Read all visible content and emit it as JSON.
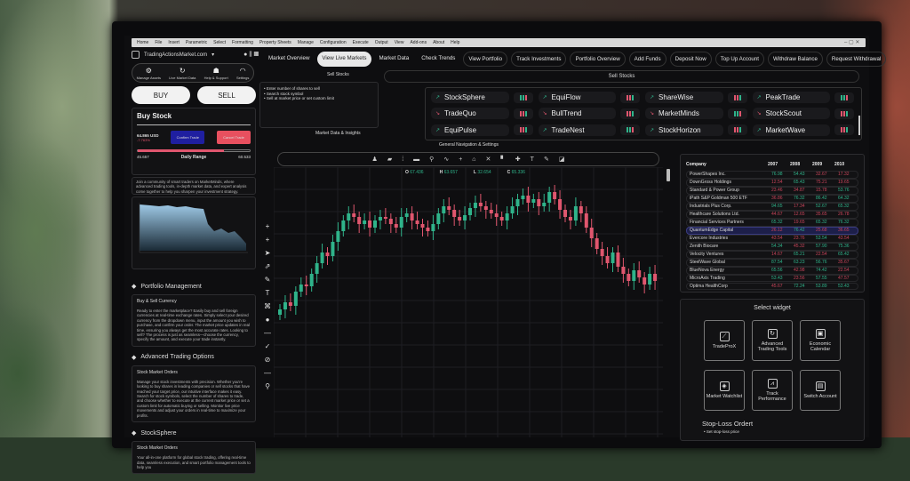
{
  "menubar": [
    "Home",
    "File",
    "Insert",
    "Parametric",
    "Select",
    "Formatting",
    "Property Sheets",
    "Manage",
    "Configuration",
    "Execute",
    "Output",
    "View",
    "Add-ons",
    "About",
    "Help"
  ],
  "brand": "TradingActionsMarket.com",
  "quick_actions": [
    {
      "icon": "gear-icon",
      "label": "Manage Assets"
    },
    {
      "icon": "refresh-icon",
      "label": "Live Market Data"
    },
    {
      "icon": "support-icon",
      "label": "Help & Support"
    },
    {
      "icon": "wifi-icon",
      "label": "Settings"
    }
  ],
  "buy_label": "BUY",
  "sell_label": "SELL",
  "buy_stock": {
    "title": "Buy Stock",
    "price": "64.865 USD",
    "change": "-7.763%",
    "confirm": "Confirm Trade",
    "cancel": "Cancel Trade",
    "range_low": "45.657",
    "range_label": "Daily Range",
    "range_high": "60.533",
    "range_fill": 0.77
  },
  "community_text": "Join a community of smart traders on MarketMinds, where advanced trading tools, in-depth market data, and expert analysis come together to help you sharpen your investment strategy.",
  "sections": [
    {
      "title": "Portfolio Management",
      "subtitle": "Buy & Sell Currency",
      "text": "Ready to enter the marketplace? Easily buy and sell foreign currencies at real-time exchange rates. Simply select your desired currency from the dropdown menu, input the amount you wish to purchase, and confirm your order. The market price updates in real time, ensuring you always get the most accurate rates. Looking to sell? The process is just as seamless—choose the currency, specify the amount, and execute your trade instantly."
    },
    {
      "title": "Advanced Trading Options",
      "subtitle": "Stock Market Orders",
      "text": "Manage your stock investments with precision. Whether you're looking to buy shares in leading companies or sell stocks that have reached your target price, our intuitive interface makes it easy. Search for stock symbols, select the number of shares to trade, and choose whether to execute at the current market price or set a custom limit for automatic buying or selling. Monitor live price movements and adjust your orders in real-time to maximize your profits."
    },
    {
      "title": "StockSphere",
      "subtitle": "Stock Market Orders",
      "text": "Your all-in-one platform for global stock trading, offering real-time data, seamless execution, and smart portfolio management tools to help you"
    }
  ],
  "nav_tabs": [
    "Market Overview",
    "View Live Markets",
    "Market Data",
    "Check Trends",
    "View Portfolio",
    "Track Investments",
    "Portfolio Overview",
    "Add Funds",
    "Deposit Now",
    "Top Up Account",
    "Withdraw Balance",
    "Request Withdrawal"
  ],
  "active_tab": "View Live Markets",
  "sell_panel": {
    "title": "Sell Stocks",
    "bullets": [
      "Enter number of shares to sell",
      "Search stock symbol",
      "Sell at market price or set custom limit"
    ]
  },
  "sell_stocks_header": "Sell Stocks",
  "stocks": [
    {
      "name": "StockSphere",
      "trend": "up"
    },
    {
      "name": "EquiFlow",
      "trend": "up"
    },
    {
      "name": "ShareWise",
      "trend": "up"
    },
    {
      "name": "PeakTrade",
      "trend": "up"
    },
    {
      "name": "TradeQuo",
      "trend": "down"
    },
    {
      "name": "BullTrend",
      "trend": "down"
    },
    {
      "name": "MarketMinds",
      "trend": "down"
    },
    {
      "name": "StockScout",
      "trend": "down"
    },
    {
      "name": "EquiPulse",
      "trend": "up"
    },
    {
      "name": "TradeNest",
      "trend": "up"
    },
    {
      "name": "StockHorizon",
      "trend": "up"
    },
    {
      "name": "MarketWave",
      "trend": "up"
    }
  ],
  "market_insights_label": "Market Data & Insights",
  "general_nav_label": "General Navigation & Settings",
  "ohlc": {
    "o": "67.436",
    "h": "63.657",
    "l": "32.654",
    "c": "65.336"
  },
  "colors": {
    "up": "#2fb38a",
    "down": "#e0566e",
    "accent_blue": "#1f1fa0",
    "cancel": "#e8505f"
  },
  "chart_data": {
    "type": "candlestick",
    "closes": [
      20,
      24,
      22,
      30,
      34,
      33,
      40,
      46,
      52,
      50,
      58,
      64,
      70,
      74,
      72,
      68,
      70,
      66,
      70,
      72,
      71,
      68,
      66,
      72,
      74,
      70,
      68,
      66,
      64,
      68,
      74,
      78,
      76,
      72,
      70,
      73,
      77,
      80,
      78,
      76,
      74,
      72,
      70,
      74,
      78,
      82,
      84,
      80,
      82,
      78,
      80,
      86,
      82,
      76,
      72,
      70,
      78,
      74,
      66,
      60,
      54,
      50,
      46,
      52,
      44,
      40,
      36,
      42,
      38,
      34,
      40,
      36
    ]
  },
  "table": {
    "headers": [
      "Company",
      "2007",
      "2008",
      "2009",
      "2010"
    ],
    "rows": [
      [
        "PowerShapes Inc.",
        "76.98",
        "54.43",
        "32.67",
        "17.32"
      ],
      [
        "DownGross Holdings",
        "12.54",
        "65.43",
        "75.21",
        "19.65"
      ],
      [
        "Standard & Power Group",
        "23.46",
        "34.87",
        "15.78",
        "53.76"
      ],
      [
        "iPath S&P Goldman 500 ETF",
        "36.86",
        "76.32",
        "86.42",
        "64.32"
      ],
      [
        "Industrials Plus Corp.",
        "94.65",
        "17.34",
        "52.67",
        "65.32"
      ],
      [
        "Healthcare Solutions Ltd.",
        "44.67",
        "12.65",
        "35.65",
        "26.78"
      ],
      [
        "Financial Services Partners",
        "65.32",
        "19.65",
        "65.32",
        "76.32"
      ],
      [
        "QuantumEdge Capital",
        "26.12",
        "76.42",
        "25.68",
        "36.65"
      ],
      [
        "Evercore Industries",
        "43.54",
        "23.76",
        "53.54",
        "43.54"
      ],
      [
        "Zenith Biocare",
        "54.34",
        "45.32",
        "57.90",
        "75.36"
      ],
      [
        "Velocity Ventures",
        "14.67",
        "65.21",
        "22.54",
        "65.42"
      ],
      [
        "SteelWave Global",
        "87.54",
        "63.23",
        "56.76",
        "35.67"
      ],
      [
        "BlueNova Energy",
        "65.56",
        "42.98",
        "74.42",
        "22.54"
      ],
      [
        "MicroAxis Trading",
        "53.43",
        "23.56",
        "57.55",
        "47.57"
      ],
      [
        "Optima HealthCorp",
        "45.67",
        "72.24",
        "53.89",
        "53.43"
      ]
    ],
    "colors": [
      [
        "g",
        "g",
        "r",
        "r"
      ],
      [
        "r",
        "g",
        "r",
        "r"
      ],
      [
        "r",
        "r",
        "r",
        "g"
      ],
      [
        "r",
        "g",
        "g",
        "g"
      ],
      [
        "g",
        "r",
        "g",
        "g"
      ],
      [
        "r",
        "r",
        "r",
        "r"
      ],
      [
        "g",
        "r",
        "g",
        "g"
      ],
      [
        "r",
        "g",
        "r",
        "r"
      ],
      [
        "r",
        "r",
        "g",
        "r"
      ],
      [
        "g",
        "r",
        "g",
        "g"
      ],
      [
        "r",
        "g",
        "r",
        "g"
      ],
      [
        "g",
        "g",
        "g",
        "r"
      ],
      [
        "g",
        "r",
        "g",
        "r"
      ],
      [
        "g",
        "r",
        "g",
        "r"
      ],
      [
        "r",
        "g",
        "g",
        "g"
      ]
    ],
    "highlighted": "QuantumEdge Capital"
  },
  "widgets": {
    "title": "Select widget",
    "items": [
      {
        "label": "TradeProX",
        "icon": "chart-icon"
      },
      {
        "label": "Advanced Trading Tools",
        "icon": "tools-icon"
      },
      {
        "label": "Economic Calendar",
        "icon": "calendar-icon"
      },
      {
        "label": "Market Watchlist",
        "icon": "tag-icon"
      },
      {
        "label": "Track Performance",
        "icon": "performance-icon"
      },
      {
        "label": "Switch Account",
        "icon": "account-icon"
      }
    ]
  },
  "stop_loss": {
    "title": "Stop-Loss Ordert",
    "bullet": "Set stop-loss price"
  }
}
